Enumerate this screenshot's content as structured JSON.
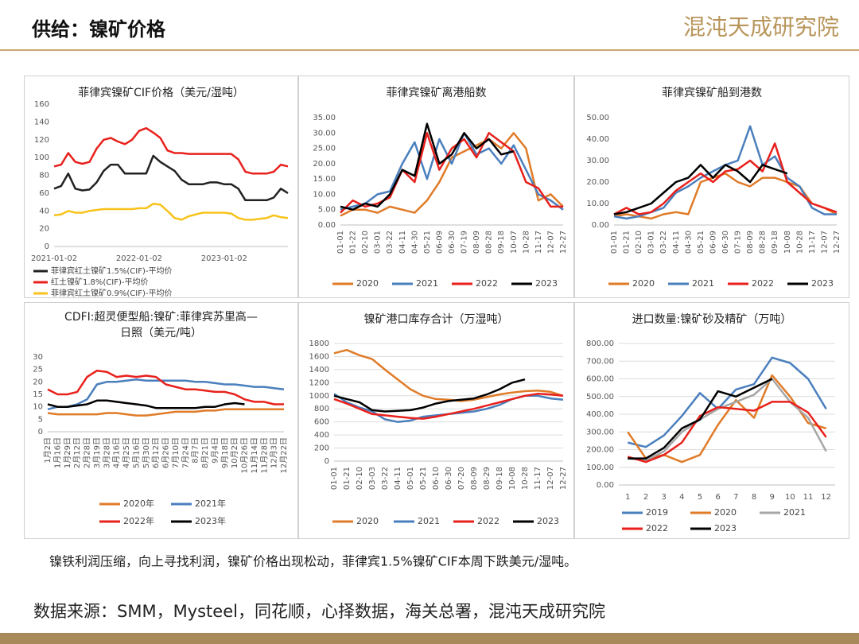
{
  "header": {
    "title": "供给：镍矿价格",
    "logo": "混沌天成研究院"
  },
  "caption": "镍铁利润压缩，向上寻找利润，镍矿价格出现松动，菲律宾1.5%镍矿CIF本周下跌美元/湿吨。",
  "source": "数据来源：SMM，Mysteel，同花顺，心择数据，海关总署，混沌天成研究院",
  "chart_data": [
    {
      "type": "line",
      "title": "菲律宾镍矿CIF价格（美元/湿吨）",
      "categories": [
        "2021-01-02",
        null,
        null,
        null,
        null,
        null,
        null,
        null,
        null,
        null,
        null,
        null,
        "2022-01-02",
        null,
        null,
        null,
        null,
        null,
        null,
        null,
        null,
        null,
        null,
        null,
        "2023-01-02",
        null,
        null,
        null,
        null,
        null,
        null,
        null,
        null,
        null
      ],
      "ylim": [
        0,
        160
      ],
      "yticks": [
        0,
        20,
        40,
        60,
        80,
        100,
        120,
        140,
        160
      ],
      "grid": false,
      "series": [
        {
          "name": "菲律宾红土镍矿1.5%(CIF)-平均价",
          "color": "#222222",
          "values": [
            65,
            68,
            82,
            65,
            63,
            64,
            72,
            85,
            92,
            92,
            82,
            82,
            82,
            82,
            102,
            95,
            90,
            85,
            75,
            70,
            70,
            70,
            72,
            72,
            70,
            70,
            65,
            52,
            52,
            52,
            52,
            55,
            65,
            60
          ]
        },
        {
          "name": "红土镍矿1.8%(CIF)-平均价",
          "color": "#e8211c",
          "values": [
            90,
            92,
            105,
            95,
            93,
            95,
            110,
            120,
            122,
            118,
            115,
            120,
            130,
            133,
            128,
            122,
            108,
            105,
            105,
            104,
            104,
            104,
            104,
            104,
            104,
            104,
            98,
            84,
            82,
            82,
            82,
            84,
            92,
            90
          ]
        },
        {
          "name": "菲律宾红土镍矿0.9%(CIF)-平均价",
          "color": "#f7c31b",
          "values": [
            35,
            36,
            40,
            38,
            38,
            40,
            41,
            42,
            42,
            42,
            42,
            42,
            43,
            43,
            48,
            47,
            40,
            32,
            30,
            34,
            36,
            38,
            38,
            38,
            38,
            37,
            32,
            30,
            30,
            31,
            32,
            35,
            33,
            32
          ]
        }
      ]
    },
    {
      "type": "line",
      "title": "菲律宾镍矿离港船数",
      "categories": [
        "01-01",
        "01-22",
        "02-10",
        "03-01",
        "03-22",
        "04-11",
        "04-30",
        "05-21",
        "06-09",
        "06-30",
        "07-19",
        "08-09",
        "08-28",
        "09-18",
        "10-07",
        "10-28",
        "11-17",
        "12-07",
        "12-27"
      ],
      "ylim": [
        0,
        35
      ],
      "yticks": [
        {
          "value": 0,
          "label": "0.00"
        },
        {
          "value": 5,
          "label": "5.00"
        },
        {
          "value": 10,
          "label": "10.00"
        },
        {
          "value": 15,
          "label": "15.00"
        },
        {
          "value": 20,
          "label": "20.00"
        },
        {
          "value": 25,
          "label": "25.00"
        },
        {
          "value": 30,
          "label": "30.00"
        },
        {
          "value": 35,
          "label": "35.00"
        }
      ],
      "grid": false,
      "series": [
        {
          "name": "2020",
          "color": "#e07b28",
          "values": [
            3,
            5,
            5,
            4,
            6,
            5,
            4,
            8,
            14,
            22,
            24,
            26,
            28,
            25,
            30,
            25,
            8,
            10,
            6
          ]
        },
        {
          "name": "2021",
          "color": "#4a7fbd",
          "values": [
            5,
            6,
            7,
            10,
            11,
            20,
            27,
            15,
            28,
            20,
            30,
            23,
            25,
            20,
            26,
            18,
            10,
            8,
            5
          ]
        },
        {
          "name": "2022",
          "color": "#e8211c",
          "values": [
            4,
            8,
            6,
            7,
            9,
            18,
            14,
            30,
            18,
            25,
            28,
            22,
            30,
            27,
            24,
            14,
            12,
            6,
            6
          ]
        },
        {
          "name": "2023",
          "color": "#000000",
          "values": [
            6,
            5,
            7,
            6,
            10,
            18,
            16,
            33,
            20,
            23,
            30,
            25,
            28,
            23,
            24,
            null,
            null,
            null,
            null
          ]
        }
      ]
    },
    {
      "type": "line",
      "title": "菲律宾镍矿船到港数",
      "categories": [
        "01-01",
        "01-21",
        "02-10",
        "03-01",
        "03-22",
        "04-11",
        "04-30",
        "05-21",
        "06-09",
        "06-30",
        "07-19",
        "08-09",
        "08-28",
        "09-18",
        "10-08",
        "10-28",
        "11-17",
        "12-07",
        "12-27"
      ],
      "ylim": [
        0,
        50
      ],
      "yticks": [
        {
          "value": 0,
          "label": "0.00"
        },
        {
          "value": 10,
          "label": "10.00"
        },
        {
          "value": 20,
          "label": "20.00"
        },
        {
          "value": 30,
          "label": "30.00"
        },
        {
          "value": 40,
          "label": "40.00"
        },
        {
          "value": 50,
          "label": "50.00"
        }
      ],
      "grid": false,
      "series": [
        {
          "name": "2020",
          "color": "#e07b28",
          "values": [
            4,
            5,
            4,
            3,
            5,
            6,
            5,
            20,
            22,
            24,
            20,
            18,
            22,
            22,
            20,
            18,
            10,
            8,
            5
          ]
        },
        {
          "name": "2021",
          "color": "#4a7fbd",
          "values": [
            4,
            3,
            4,
            6,
            8,
            15,
            18,
            22,
            25,
            28,
            30,
            46,
            28,
            32,
            22,
            18,
            8,
            5,
            5
          ]
        },
        {
          "name": "2022",
          "color": "#e8211c",
          "values": [
            5,
            8,
            5,
            6,
            10,
            16,
            20,
            24,
            20,
            25,
            26,
            30,
            25,
            38,
            20,
            15,
            10,
            8,
            6
          ]
        },
        {
          "name": "2023",
          "color": "#000000",
          "values": [
            5,
            6,
            8,
            10,
            15,
            20,
            22,
            28,
            22,
            28,
            25,
            20,
            28,
            26,
            24,
            null,
            null,
            null,
            null
          ]
        }
      ]
    },
    {
      "type": "line",
      "title": [
        "CDFI:超灵便型船:镍矿:菲律宾苏里高—",
        "日照（美元/吨）"
      ],
      "categories": [
        "1月2日",
        "1月16日",
        "1月29日",
        "2月12日",
        "2月28日",
        "3月19日",
        "3月28日",
        "4月16日",
        "4月25日",
        "5月16日",
        "5月30日",
        "6月12日",
        "6月26日",
        "7月10日",
        "7月24日",
        "8月7日",
        "8月21日",
        "9月4日",
        "9月18日",
        "10月2日",
        "10月26日",
        "11月14日",
        "11月28日",
        "12月3日",
        "12月22日"
      ],
      "ylim": [
        0,
        30
      ],
      "yticks": [
        0,
        5,
        10,
        15,
        20,
        25,
        30
      ],
      "grid": false,
      "series": [
        {
          "name": "2020年",
          "color": "#e07b28",
          "values": [
            7.5,
            7,
            7,
            7,
            7,
            7,
            7.5,
            7.5,
            7,
            6.5,
            6.5,
            7,
            7.5,
            8,
            8,
            8,
            8.5,
            8.5,
            9,
            9,
            9,
            9,
            9,
            9,
            9
          ]
        },
        {
          "name": "2021年",
          "color": "#4a7fbd",
          "values": [
            9,
            10,
            10,
            11,
            13,
            19,
            20,
            20,
            20.5,
            21,
            20.5,
            20.5,
            20.5,
            20.5,
            20.5,
            20,
            20,
            19.5,
            19,
            19,
            18.5,
            18,
            18,
            17.5,
            17
          ]
        },
        {
          "name": "2022年",
          "color": "#e8211c",
          "values": [
            17,
            15,
            15,
            16,
            22,
            24.5,
            24,
            22,
            22.5,
            22,
            22.5,
            22,
            19,
            18,
            17,
            17,
            16.5,
            16,
            16,
            15,
            13,
            12,
            12,
            11,
            11
          ]
        },
        {
          "name": "2023年",
          "color": "#000000",
          "values": [
            11,
            10,
            10,
            10.5,
            11,
            12.5,
            12.5,
            12,
            11.5,
            11,
            10.5,
            9.5,
            9.5,
            9.5,
            9.5,
            9.5,
            10,
            10,
            11,
            11.5,
            11,
            null,
            null,
            null,
            null
          ]
        }
      ]
    },
    {
      "type": "line",
      "title": "镍矿港口库存合计（万湿吨）",
      "categories": [
        "01-01",
        "01-21",
        "02-10",
        "03-03",
        "03-22",
        "04-11",
        "05-01",
        "05-21",
        "06-10",
        "06-30",
        "07-20",
        "08-09",
        "08-29",
        "09-18",
        "10-08",
        "10-28",
        "11-17",
        "12-07",
        "12-27"
      ],
      "ylim": [
        0,
        1800
      ],
      "yticks": [
        0,
        200,
        400,
        600,
        800,
        1000,
        1200,
        1400,
        1600,
        1800
      ],
      "grid": true,
      "series": [
        {
          "name": "2020",
          "color": "#e07b28",
          "values": [
            1650,
            1700,
            1620,
            1560,
            1400,
            1250,
            1100,
            1000,
            950,
            940,
            920,
            940,
            980,
            1020,
            1050,
            1070,
            1080,
            1060,
            1000
          ]
        },
        {
          "name": "2021",
          "color": "#4a7fbd",
          "values": [
            1030,
            900,
            820,
            760,
            640,
            600,
            620,
            680,
            700,
            720,
            740,
            760,
            800,
            860,
            950,
            1000,
            1000,
            960,
            940
          ]
        },
        {
          "name": "2022",
          "color": "#e8211c",
          "values": [
            950,
            880,
            800,
            720,
            700,
            680,
            660,
            650,
            680,
            720,
            760,
            800,
            850,
            900,
            950,
            1000,
            1030,
            1020,
            1000
          ]
        },
        {
          "name": "2023",
          "color": "#000000",
          "values": [
            1000,
            950,
            900,
            780,
            760,
            770,
            780,
            820,
            880,
            920,
            940,
            960,
            1020,
            1100,
            1200,
            1250,
            null,
            null,
            null
          ]
        }
      ]
    },
    {
      "type": "line",
      "title": "进口数量:镍矿砂及精矿（万吨）",
      "categories": [
        1,
        2,
        3,
        4,
        5,
        6,
        7,
        8,
        9,
        10,
        11,
        12
      ],
      "ylim": [
        0,
        800
      ],
      "yticks": [
        {
          "value": 0,
          "label": "0.00"
        },
        {
          "value": 100,
          "label": "100.00"
        },
        {
          "value": 200,
          "label": "200.00"
        },
        {
          "value": 300,
          "label": "300.00"
        },
        {
          "value": 400,
          "label": "400.00"
        },
        {
          "value": 500,
          "label": "500.00"
        },
        {
          "value": 600,
          "label": "600.00"
        },
        {
          "value": 700,
          "label": "700.00"
        },
        {
          "value": 800,
          "label": "800.00"
        }
      ],
      "grid": true,
      "series": [
        {
          "name": "2019",
          "color": "#4a7fbd",
          "values": [
            240,
            215,
            280,
            390,
            520,
            430,
            540,
            570,
            720,
            690,
            600,
            430
          ]
        },
        {
          "name": "2020",
          "color": "#e07b28",
          "values": [
            300,
            150,
            170,
            130,
            170,
            340,
            480,
            380,
            620,
            500,
            350,
            320
          ]
        },
        {
          "name": "2021",
          "color": "#a6a6a6",
          "values": [
            150,
            140,
            190,
            300,
            370,
            430,
            470,
            510,
            600,
            470,
            380,
            190
          ]
        },
        {
          "name": "2022",
          "color": "#e8211c",
          "values": [
            160,
            130,
            170,
            240,
            390,
            440,
            430,
            420,
            470,
            470,
            410,
            270
          ]
        },
        {
          "name": "2023",
          "color": "#000000",
          "values": [
            150,
            150,
            210,
            320,
            370,
            530,
            500,
            550,
            600,
            null,
            null,
            null
          ]
        }
      ]
    }
  ]
}
